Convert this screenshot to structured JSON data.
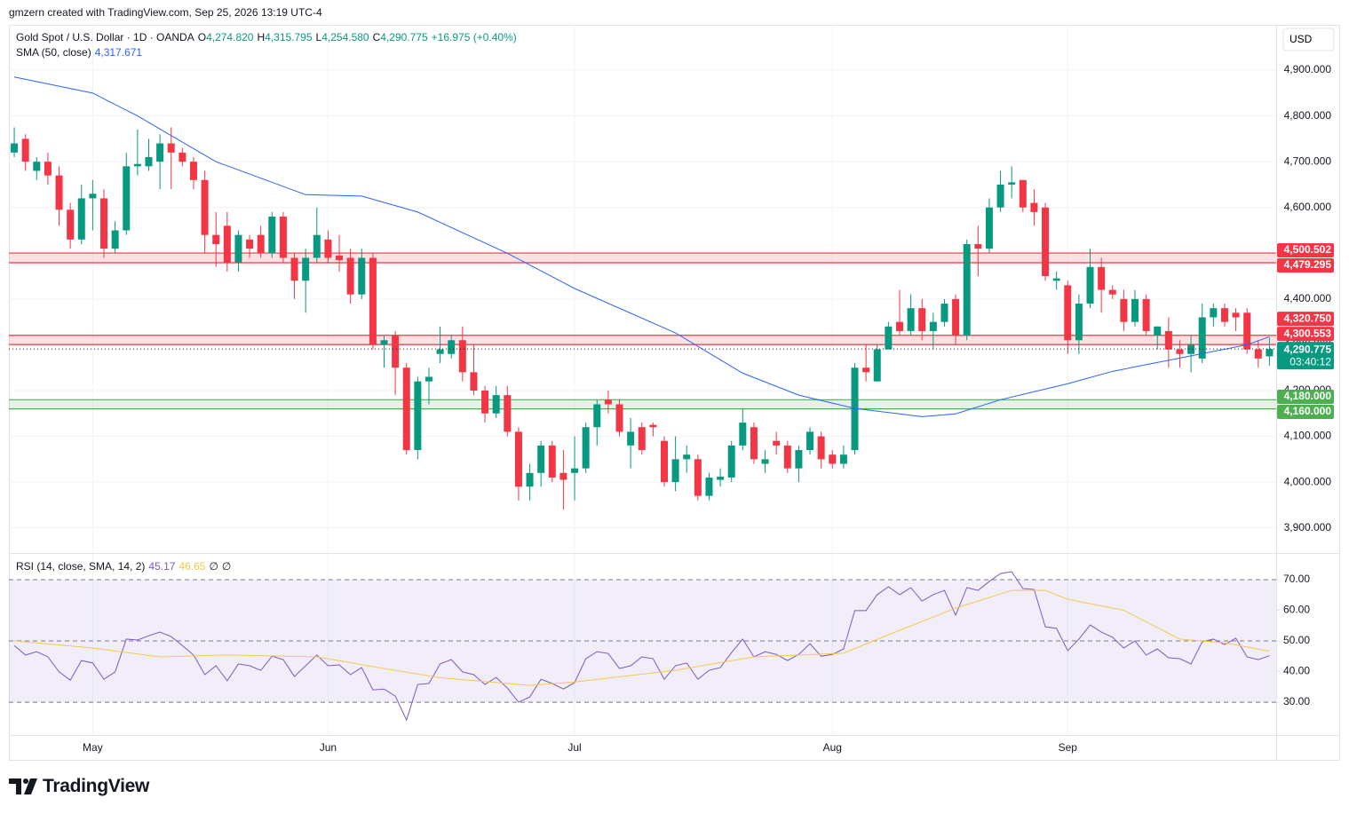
{
  "header": {
    "credit": "gmzern created with TradingView.com, Sep 25, 2026 13:19 UTC-4",
    "brand": "TradingView"
  },
  "chart_data": [
    {
      "type": "candlestick",
      "title": "Gold Spot / U.S. Dollar · 1D · OANDA",
      "legend": [
        {
          "key": "O",
          "value": 4274.82,
          "label": "4,274.820"
        },
        {
          "key": "H",
          "value": 4315.795,
          "label": "4,315.795"
        },
        {
          "key": "L",
          "value": 4254.58,
          "label": "4,254.580"
        },
        {
          "key": "C",
          "value": 4290.775,
          "label": "4,290.775"
        }
      ],
      "change": "+16.975 (+0.40%)",
      "currency": "USD",
      "up_color": "#089981",
      "down_color": "#f23645",
      "open": [
        4720,
        4750,
        4680,
        4700,
        4670,
        4595,
        4530,
        4620,
        4620,
        4510,
        4550,
        4690,
        4690,
        4700,
        4740,
        4720,
        4700,
        4660,
        4540,
        4560,
        4480,
        4530,
        4540,
        4500,
        4580,
        4490,
        4440,
        4490,
        4530,
        4495,
        4490,
        4410,
        4490,
        4300,
        4320,
        4250,
        4070,
        4220,
        4280,
        4280,
        4310,
        4240,
        4200,
        4150,
        4190,
        4110,
        3990,
        4020,
        4080,
        4020,
        4020,
        4030,
        4120,
        4180,
        4170,
        4080,
        4120,
        4125,
        4090,
        4000,
        4050,
        4050,
        3970,
        4005,
        4010,
        4080,
        4120,
        4040,
        4090,
        4080,
        4030,
        4070,
        4100,
        4060,
        4040,
        4070,
        4250,
        4220,
        4290,
        4350,
        4330,
        4380,
        4330,
        4350,
        4400,
        4320,
        4520,
        4510,
        4600,
        4650,
        4660,
        4610,
        4600,
        4440,
        4430,
        4310,
        4390,
        4470,
        4420,
        4400,
        4350,
        4400,
        4320,
        4330,
        4290,
        4280,
        4270,
        4360,
        4380,
        4370,
        4370,
        4290,
        4274.82
      ],
      "high": [
        4775,
        4760,
        4710,
        4720,
        4690,
        4610,
        4650,
        4660,
        4640,
        4570,
        4720,
        4770,
        4750,
        4760,
        4775,
        4730,
        4710,
        4680,
        4590,
        4590,
        4550,
        4540,
        4560,
        4590,
        4590,
        4500,
        4510,
        4600,
        4550,
        4540,
        4510,
        4510,
        4500,
        4320,
        4330,
        4260,
        4230,
        4250,
        4340,
        4320,
        4340,
        4300,
        4210,
        4210,
        4210,
        4120,
        4040,
        4090,
        4090,
        4070,
        4100,
        4130,
        4180,
        4200,
        4180,
        4140,
        4130,
        4130,
        4100,
        4100,
        4080,
        4060,
        4020,
        4030,
        4090,
        4160,
        4130,
        4070,
        4110,
        4090,
        4080,
        4120,
        4110,
        4070,
        4080,
        4260,
        4300,
        4300,
        4350,
        4420,
        4410,
        4400,
        4370,
        4400,
        4410,
        4530,
        4560,
        4620,
        4680,
        4690,
        4660,
        4640,
        4610,
        4460,
        4440,
        4410,
        4510,
        4490,
        4430,
        4420,
        4420,
        4410,
        4340,
        4360,
        4310,
        4320,
        4390,
        4390,
        4390,
        4380,
        4380,
        4310,
        4315.795
      ],
      "low": [
        4710,
        4680,
        4660,
        4650,
        4560,
        4510,
        4520,
        4550,
        4490,
        4500,
        4540,
        4670,
        4680,
        4640,
        4640,
        4690,
        4640,
        4500,
        4470,
        4460,
        4460,
        4490,
        4490,
        4490,
        4480,
        4400,
        4370,
        4480,
        4480,
        4460,
        4390,
        4400,
        4290,
        4250,
        4190,
        4060,
        4050,
        4170,
        4260,
        4270,
        4220,
        4190,
        4130,
        4140,
        4100,
        3960,
        3960,
        3990,
        4000,
        3940,
        3960,
        4020,
        4080,
        4150,
        4100,
        4030,
        4060,
        4100,
        3990,
        3980,
        4020,
        3960,
        3960,
        3990,
        4000,
        4070,
        4040,
        4020,
        4060,
        4020,
        4000,
        4060,
        4030,
        4030,
        4030,
        4060,
        4220,
        4220,
        4290,
        4320,
        4320,
        4310,
        4290,
        4340,
        4300,
        4310,
        4450,
        4500,
        4590,
        4620,
        4590,
        4560,
        4440,
        4420,
        4280,
        4280,
        4380,
        4370,
        4400,
        4330,
        4340,
        4320,
        4290,
        4250,
        4250,
        4240,
        4260,
        4340,
        4340,
        4330,
        4280,
        4250,
        4254.58
      ],
      "close": [
        4740,
        4700,
        4700,
        4670,
        4595,
        4530,
        4620,
        4630,
        4510,
        4550,
        4690,
        4695,
        4710,
        4740,
        4720,
        4700,
        4660,
        4540,
        4520,
        4480,
        4540,
        4510,
        4500,
        4580,
        4490,
        4440,
        4490,
        4540,
        4490,
        4485,
        4410,
        4490,
        4300,
        4310,
        4250,
        4070,
        4220,
        4230,
        4290,
        4310,
        4240,
        4200,
        4150,
        4190,
        4110,
        3990,
        4020,
        4080,
        4010,
        4005,
        4030,
        4120,
        4170,
        4170,
        4110,
        4110,
        4070,
        4120,
        4000,
        4050,
        4060,
        3970,
        4010,
        4012,
        4080,
        4130,
        4050,
        4050,
        4080,
        4030,
        4070,
        4110,
        4050,
        4040,
        4060,
        4250,
        4240,
        4290,
        4340,
        4330,
        4380,
        4330,
        4350,
        4390,
        4320,
        4520,
        4510,
        4600,
        4650,
        4655,
        4600,
        4590,
        4450,
        4445,
        4310,
        4390,
        4470,
        4420,
        4410,
        4350,
        4400,
        4330,
        4340,
        4290,
        4280,
        4300,
        4360,
        4380,
        4350,
        4360,
        4290,
        4270,
        4290.775
      ],
      "series": [
        {
          "name": "SMA (50, close)",
          "last": {
            "value": 4317.671,
            "label": "4,317.671"
          },
          "color": "#2962ff",
          "x": [
            0,
            7,
            11,
            18,
            26,
            31,
            36,
            44,
            50,
            59,
            65,
            70,
            75,
            81,
            84,
            88,
            94,
            98,
            104,
            110,
            112
          ],
          "values": [
            4885,
            4850,
            4800,
            4700,
            4628,
            4625,
            4590,
            4500,
            4423,
            4326,
            4238,
            4190,
            4161,
            4143,
            4149,
            4180,
            4215,
            4242,
            4271,
            4300,
            4317.671
          ]
        }
      ],
      "xlim": [
        -0.48,
        112.6
      ],
      "xticks": [
        {
          "value": 7,
          "label": "May"
        },
        {
          "value": 28,
          "label": "Jun"
        },
        {
          "value": 50,
          "label": "Jul"
        },
        {
          "value": 73,
          "label": "Aug"
        },
        {
          "value": 94,
          "label": "Sep"
        }
      ],
      "ylim": [
        3847,
        4999
      ],
      "yticks": [
        {
          "value": 3900,
          "label": "3,900.000"
        },
        {
          "value": 4000,
          "label": "4,000.000"
        },
        {
          "value": 4100,
          "label": "4,100.000"
        },
        {
          "value": 4200,
          "label": "4,200.000"
        },
        {
          "value": 4300,
          "label": "4,300.000"
        },
        {
          "value": 4400,
          "label": "4,400.000"
        },
        {
          "value": 4500,
          "label": "4,500.000"
        },
        {
          "value": 4600,
          "label": "4,600.000"
        },
        {
          "value": 4700,
          "label": "4,700.000"
        },
        {
          "value": 4800,
          "label": "4,800.000"
        },
        {
          "value": 4900,
          "label": "4,900.000"
        }
      ],
      "grid": true,
      "zones": [
        {
          "from": {
            "value": 4479.295,
            "label": "4,479.295"
          },
          "to": {
            "value": 4500.502,
            "label": "4,500.502"
          },
          "color": "#f23645"
        },
        {
          "from": {
            "value": 4300.553,
            "label": "4,300.553"
          },
          "to": {
            "value": 4320.75,
            "label": "4,320.750"
          },
          "color": "#f23645"
        },
        {
          "from": {
            "value": 4160,
            "label": "4,160.000"
          },
          "to": {
            "value": 4180,
            "label": "4,180.000"
          },
          "color": "#4caf50"
        }
      ],
      "last_price": {
        "value": 4290.775,
        "label": "4,290.775"
      },
      "countdown": "03:40:12"
    },
    {
      "type": "line",
      "title": "RSI (14, close, SMA, 14, 2)",
      "extra": [
        "∅",
        "∅"
      ],
      "series": [
        {
          "last": 45.17,
          "color": "#7e57c2",
          "values": [
            48.5,
            45.4,
            46.5,
            44.8,
            39.9,
            37.2,
            43.6,
            42.8,
            37.5,
            39.9,
            50.6,
            50.3,
            51.7,
            52.9,
            51.4,
            48.5,
            45.4,
            39,
            41.9,
            37,
            42.5,
            41.9,
            40.4,
            45,
            43.9,
            38.4,
            41.9,
            45.4,
            41.9,
            42.2,
            39,
            41.3,
            34,
            34.3,
            32,
            24.2,
            35.8,
            36.1,
            42.5,
            43.9,
            39.9,
            39,
            35.8,
            38.1,
            34.6,
            30,
            31.7,
            37.5,
            36.1,
            34.3,
            36.4,
            44.2,
            46.5,
            45.9,
            41,
            41.9,
            44.8,
            44.2,
            37.5,
            41.9,
            42.8,
            37.5,
            40.4,
            41.3,
            46.2,
            50.6,
            44.8,
            46.5,
            45.6,
            43.6,
            45.6,
            49.1,
            45,
            45.6,
            47.4,
            59.9,
            59.9,
            65.1,
            67.7,
            65.1,
            67.4,
            63,
            65.1,
            66.5,
            58.4,
            67.4,
            66.5,
            69.4,
            72,
            72.6,
            67.1,
            66.8,
            54.6,
            54.1,
            46.8,
            50.6,
            55.2,
            52.9,
            51.2,
            47.7,
            50,
            45.4,
            47.4,
            44.5,
            44.2,
            42.5,
            49.7,
            50.6,
            48.8,
            50.9,
            44.8,
            43.9,
            45.17
          ]
        },
        {
          "last": 46.65,
          "color": "#f2c94c",
          "x": [
            0,
            7,
            13,
            19,
            27,
            33,
            38,
            46,
            50,
            59,
            66,
            74,
            78,
            84,
            89,
            92,
            94,
            99,
            104,
            108,
            112
          ],
          "values": [
            50,
            47.7,
            44.8,
            45.4,
            44.8,
            41,
            38,
            35.5,
            36.6,
            40.4,
            44.8,
            46,
            52,
            60.7,
            66.5,
            66.5,
            63.6,
            60,
            50.6,
            49.4,
            46.65
          ]
        }
      ],
      "xlim": [
        -0.48,
        112.6
      ],
      "ylim": [
        19.3,
        78.4
      ],
      "yticks": [
        {
          "value": 30,
          "label": "30.00"
        },
        {
          "value": 40,
          "label": "40.00"
        },
        {
          "value": 50,
          "label": "50.00"
        },
        {
          "value": 60,
          "label": "60.00"
        },
        {
          "value": 70,
          "label": "70.00"
        }
      ],
      "levels": [
        30,
        50,
        70
      ],
      "band_color": "#7e57c2"
    }
  ]
}
